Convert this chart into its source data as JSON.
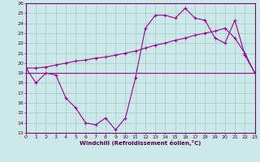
{
  "xlabel": "Windchill (Refroidissement éolien,°C)",
  "bg_color": "#cce8e8",
  "grid_color": "#aacccc",
  "line_color": "#990099",
  "xlim": [
    0,
    23
  ],
  "ylim": [
    13,
    26
  ],
  "xticks": [
    0,
    1,
    2,
    3,
    4,
    5,
    6,
    7,
    8,
    9,
    10,
    11,
    12,
    13,
    14,
    15,
    16,
    17,
    18,
    19,
    20,
    21,
    22,
    23
  ],
  "yticks": [
    13,
    14,
    15,
    16,
    17,
    18,
    19,
    20,
    21,
    22,
    23,
    24,
    25,
    26
  ],
  "series1_x": [
    0,
    1,
    2,
    3,
    4,
    5,
    6,
    7,
    8,
    9,
    10,
    11,
    12,
    13,
    14,
    15,
    16,
    17,
    18,
    19,
    20,
    21,
    22,
    23
  ],
  "series1_y": [
    19.5,
    18.0,
    19.0,
    18.8,
    16.5,
    15.5,
    14.0,
    13.8,
    14.5,
    13.3,
    14.5,
    18.5,
    23.5,
    24.8,
    24.8,
    24.5,
    25.5,
    24.5,
    24.3,
    22.5,
    22.0,
    24.3,
    20.8,
    19.0
  ],
  "series2_x": [
    0,
    1,
    2,
    3,
    4,
    5,
    6,
    7,
    8,
    9,
    10,
    11,
    12,
    13,
    14,
    15,
    16,
    17,
    18,
    19,
    20,
    21,
    22,
    23
  ],
  "series2_y": [
    19.5,
    19.5,
    19.6,
    19.8,
    20.0,
    20.2,
    20.3,
    20.5,
    20.6,
    20.8,
    21.0,
    21.2,
    21.5,
    21.8,
    22.0,
    22.3,
    22.5,
    22.8,
    23.0,
    23.2,
    23.5,
    22.5,
    21.0,
    19.0
  ],
  "series3_x": [
    0,
    23
  ],
  "series3_y": [
    19.0,
    19.0
  ]
}
